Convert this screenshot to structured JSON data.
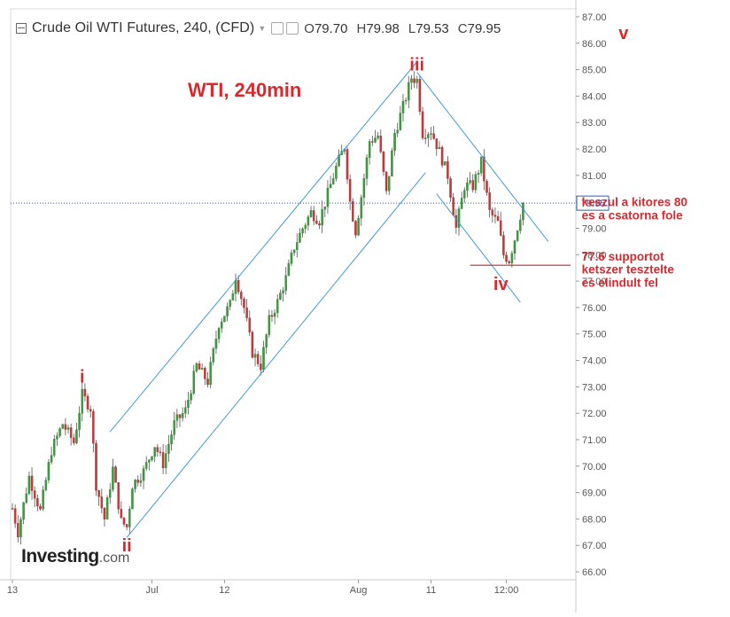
{
  "header": {
    "title": "Crude Oil WTI Futures, 240, (CFD)",
    "open_label": "O",
    "open": "79.70",
    "high_label": "H",
    "high": "79.98",
    "low_label": "L",
    "low": "79.53",
    "close_label": "C",
    "close": "79.95"
  },
  "logo": {
    "brand": "Investing",
    "suffix": ".com"
  },
  "chart_data": {
    "type": "candlestick",
    "title": "WTI, 240min",
    "y_axis": {
      "ticks": [
        "66.00",
        "67.00",
        "68.00",
        "69.00",
        "70.00",
        "71.00",
        "72.00",
        "73.00",
        "74.00",
        "75.00",
        "76.00",
        "77.00",
        "78.00",
        "79.00",
        "80.00",
        "81.00",
        "82.00",
        "83.00",
        "84.00",
        "85.00",
        "86.00",
        "87.00"
      ],
      "ylim": [
        65.7,
        87.3
      ],
      "current_price_label": "79.95",
      "current_price": 79.95
    },
    "x_axis": {
      "ticks": [
        {
          "label": "13",
          "bar": 0
        },
        {
          "label": "Jul",
          "bar": 50
        },
        {
          "label": "12",
          "bar": 76
        },
        {
          "label": "Aug",
          "bar": 124
        },
        {
          "label": "11",
          "bar": 150
        },
        {
          "label": "12:00",
          "bar": 177
        }
      ],
      "bar_count": 183
    },
    "waves": [
      {
        "label": "i",
        "bar": 25,
        "price": 73.4
      },
      {
        "label": "ii",
        "bar": 41,
        "price": 67.0
      },
      {
        "label": "iii",
        "bar": 145,
        "price": 85.2
      },
      {
        "label": "iv",
        "bar": 175,
        "price": 76.9
      },
      {
        "label": "v",
        "bar": 219,
        "price": 86.4
      }
    ],
    "trend_channels": [
      {
        "from": {
          "bar": 35,
          "price": 71.3
        },
        "to": {
          "bar": 145,
          "price": 85.3
        }
      },
      {
        "from": {
          "bar": 41,
          "price": 67.3
        },
        "to": {
          "bar": 148,
          "price": 81.1
        }
      },
      {
        "from": {
          "bar": 145,
          "price": 84.9
        },
        "to": {
          "bar": 192,
          "price": 78.5
        }
      },
      {
        "from": {
          "bar": 152,
          "price": 80.3
        },
        "to": {
          "bar": 182,
          "price": 76.2
        }
      }
    ],
    "support_line": {
      "from_bar": 164,
      "to_bar": 200,
      "price": 77.6
    },
    "annotations": [
      {
        "text": "keszul a kitores 80",
        "bar": 204,
        "price": 80.0
      },
      {
        "text": "es a csatorna fole",
        "bar": 204,
        "price": 79.5
      },
      {
        "text": "77.6 supportot",
        "bar": 204,
        "price": 77.95
      },
      {
        "text": "ketszer tesztelte",
        "bar": 204,
        "price": 77.45
      },
      {
        "text": "es elindult fel",
        "bar": 204,
        "price": 76.95
      }
    ],
    "path": [
      [
        0,
        68.4
      ],
      [
        2,
        67.5
      ],
      [
        6,
        69.6
      ],
      [
        10,
        68.3
      ],
      [
        14,
        70.6
      ],
      [
        18,
        71.6
      ],
      [
        22,
        70.9
      ],
      [
        25,
        72.7
      ],
      [
        28,
        72.2
      ],
      [
        30,
        69.3
      ],
      [
        33,
        68.0
      ],
      [
        36,
        69.9
      ],
      [
        39,
        67.9
      ],
      [
        41,
        67.7
      ],
      [
        43,
        69.3
      ],
      [
        47,
        69.8
      ],
      [
        51,
        70.8
      ],
      [
        54,
        70.1
      ],
      [
        58,
        71.6
      ],
      [
        62,
        72.1
      ],
      [
        66,
        73.8
      ],
      [
        70,
        73.2
      ],
      [
        74,
        75.4
      ],
      [
        78,
        76.1
      ],
      [
        80,
        77.2
      ],
      [
        83,
        76.0
      ],
      [
        86,
        74.3
      ],
      [
        89,
        73.8
      ],
      [
        92,
        75.5
      ],
      [
        95,
        76.2
      ],
      [
        98,
        77.1
      ],
      [
        101,
        78.3
      ],
      [
        104,
        79.0
      ],
      [
        107,
        79.6
      ],
      [
        110,
        79.3
      ],
      [
        113,
        80.3
      ],
      [
        116,
        81.3
      ],
      [
        119,
        82.1
      ],
      [
        121,
        80.0
      ],
      [
        123,
        78.9
      ],
      [
        125,
        80.2
      ],
      [
        128,
        82.3
      ],
      [
        131,
        82.5
      ],
      [
        134,
        80.3
      ],
      [
        137,
        82.6
      ],
      [
        140,
        83.6
      ],
      [
        143,
        84.7
      ],
      [
        145,
        84.6
      ],
      [
        147,
        82.6
      ],
      [
        150,
        82.7
      ],
      [
        153,
        81.9
      ],
      [
        156,
        81.0
      ],
      [
        159,
        79.0
      ],
      [
        162,
        80.6
      ],
      [
        165,
        80.6
      ],
      [
        168,
        81.5
      ],
      [
        171,
        79.6
      ],
      [
        174,
        79.2
      ],
      [
        176,
        78.0
      ],
      [
        178,
        77.8
      ],
      [
        180,
        78.6
      ],
      [
        183,
        79.95
      ]
    ]
  }
}
